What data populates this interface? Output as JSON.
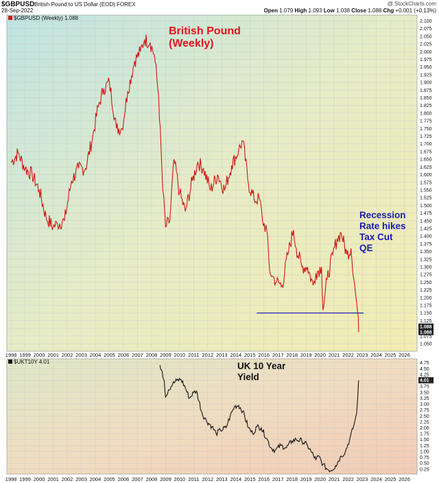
{
  "header": {
    "symbol": "$GBPUSD",
    "description": "British Pound to US Dollar (EOD) FOREX",
    "date": "28-Sep-2022",
    "watermark": "@ StockCharts.com",
    "ohlc": {
      "open_label": "Open",
      "open": "1.079",
      "high_label": "High",
      "high": "1.093",
      "low_label": "Low",
      "low": "1.038",
      "close_label": "Close",
      "close": "1.088",
      "chg_label": "Chg",
      "chg": "+0.001 (+0.13%)"
    }
  },
  "chart_data": [
    {
      "type": "line",
      "legend": "$GBPUSD (Weekly) 1.088",
      "annotation_title": [
        "British Pound",
        "(Weekly)"
      ],
      "annotation_notes": [
        "Recession",
        "Rate hikes",
        "Tax Cut",
        "QE"
      ],
      "y_ticks": [
        "2.100",
        "2.075",
        "2.050",
        "2.025",
        "2.000",
        "1.975",
        "1.950",
        "1.925",
        "1.900",
        "1.875",
        "1.850",
        "1.825",
        "1.800",
        "1.775",
        "1.750",
        "1.725",
        "1.700",
        "1.675",
        "1.650",
        "1.625",
        "1.600",
        "1.575",
        "1.550",
        "1.525",
        "1.500",
        "1.475",
        "1.450",
        "1.425",
        "1.400",
        "1.375",
        "1.350",
        "1.325",
        "1.300",
        "1.275",
        "1.250",
        "1.225",
        "1.200",
        "1.175",
        "1.150",
        "1.125",
        "1.100",
        "1.075",
        "1.050"
      ],
      "ylim": [
        1.03,
        2.11
      ],
      "last_value": "1.088",
      "last_value_2": "1.088",
      "support_line": {
        "value": 1.15,
        "x_start": 2015.5,
        "x_end": 2023.1
      },
      "color": "#d11414",
      "x": [
        1998.0,
        1998.5,
        1999.0,
        1999.5,
        2000.0,
        2000.5,
        2001.0,
        2001.3,
        2001.8,
        2002.3,
        2002.8,
        2003.3,
        2003.8,
        2004.2,
        2004.6,
        2005.0,
        2005.5,
        2005.9,
        2006.3,
        2006.8,
        2007.2,
        2007.5,
        2007.9,
        2008.2,
        2008.5,
        2008.8,
        2009.0,
        2009.3,
        2009.6,
        2010.0,
        2010.4,
        2010.9,
        2011.3,
        2011.7,
        2012.2,
        2012.7,
        2013.2,
        2013.7,
        2014.2,
        2014.5,
        2014.9,
        2015.3,
        2015.7,
        2015.9,
        2016.2,
        2016.4,
        2016.6,
        2016.9,
        2017.3,
        2017.7,
        2018.1,
        2018.3,
        2018.7,
        2019.1,
        2019.5,
        2019.7,
        2020.1,
        2020.2,
        2020.5,
        2020.9,
        2021.2,
        2021.5,
        2021.9,
        2022.2,
        2022.5,
        2022.7,
        2022.74
      ],
      "y": [
        1.64,
        1.67,
        1.62,
        1.6,
        1.55,
        1.46,
        1.43,
        1.44,
        1.45,
        1.58,
        1.62,
        1.62,
        1.72,
        1.82,
        1.88,
        1.9,
        1.75,
        1.75,
        1.87,
        1.97,
        2.0,
        2.04,
        2.03,
        1.99,
        1.86,
        1.55,
        1.43,
        1.45,
        1.65,
        1.54,
        1.48,
        1.58,
        1.64,
        1.62,
        1.55,
        1.6,
        1.55,
        1.63,
        1.68,
        1.71,
        1.57,
        1.52,
        1.52,
        1.45,
        1.42,
        1.29,
        1.27,
        1.25,
        1.24,
        1.34,
        1.42,
        1.36,
        1.3,
        1.3,
        1.24,
        1.28,
        1.3,
        1.16,
        1.26,
        1.34,
        1.39,
        1.41,
        1.34,
        1.36,
        1.22,
        1.14,
        1.088
      ],
      "x_labels": [
        "1998",
        "1999",
        "2000",
        "2001",
        "2002",
        "2003",
        "2004",
        "2005",
        "2006",
        "2007",
        "2008",
        "2009",
        "2010",
        "2011",
        "2012",
        "2013",
        "2014",
        "2015",
        "2016",
        "2017",
        "2018",
        "2019",
        "2020",
        "2021",
        "2022",
        "2023",
        "2024",
        "2025",
        "2026"
      ]
    },
    {
      "type": "line",
      "legend": "$UKT10Y 4.01",
      "annotation_title": [
        "UK 10 Year",
        "Yield"
      ],
      "y_ticks": [
        "4.75",
        "4.50",
        "4.25",
        "4.00",
        "3.75",
        "3.50",
        "3.25",
        "3.00",
        "2.75",
        "2.50",
        "2.25",
        "2.00",
        "1.75",
        "1.50",
        "1.25",
        "1.00",
        "0.75",
        "0.50",
        "0.25"
      ],
      "ylim": [
        0.1,
        4.8
      ],
      "last_value": "4.01",
      "color": "#111111",
      "x": [
        2008.6,
        2008.75,
        2008.9,
        2009.0,
        2009.2,
        2009.5,
        2009.8,
        2010.1,
        2010.4,
        2010.7,
        2011.0,
        2011.2,
        2011.6,
        2011.9,
        2012.3,
        2012.6,
        2012.9,
        2013.3,
        2013.6,
        2013.9,
        2014.2,
        2014.5,
        2014.9,
        2015.2,
        2015.5,
        2015.8,
        2016.2,
        2016.5,
        2016.8,
        2017.2,
        2017.6,
        2018.0,
        2018.3,
        2018.7,
        2019.1,
        2019.4,
        2019.7,
        2019.9,
        2020.2,
        2020.5,
        2020.8,
        2021.1,
        2021.5,
        2021.8,
        2022.1,
        2022.4,
        2022.6,
        2022.74
      ],
      "y": [
        4.65,
        4.4,
        4.0,
        3.3,
        3.6,
        3.85,
        4.0,
        4.05,
        3.7,
        3.25,
        3.5,
        3.55,
        2.6,
        2.3,
        2.05,
        1.75,
        1.9,
        2.0,
        2.5,
        2.9,
        2.95,
        2.7,
        2.0,
        1.75,
        2.05,
        2.0,
        1.55,
        1.15,
        1.05,
        1.25,
        1.15,
        1.45,
        1.5,
        1.45,
        1.25,
        0.95,
        0.65,
        0.8,
        0.45,
        0.25,
        0.2,
        0.4,
        0.8,
        1.0,
        1.5,
        2.1,
        2.6,
        4.01
      ],
      "x_labels": [
        "1998",
        "1999",
        "2000",
        "2001",
        "2002",
        "2003",
        "2004",
        "2005",
        "2006",
        "2007",
        "2008",
        "2009",
        "2010",
        "2011",
        "2012",
        "2013",
        "2014",
        "2015",
        "2016",
        "2017",
        "2018",
        "2019",
        "2020",
        "2021",
        "2022",
        "2023",
        "2024",
        "2025",
        "2026"
      ]
    }
  ]
}
